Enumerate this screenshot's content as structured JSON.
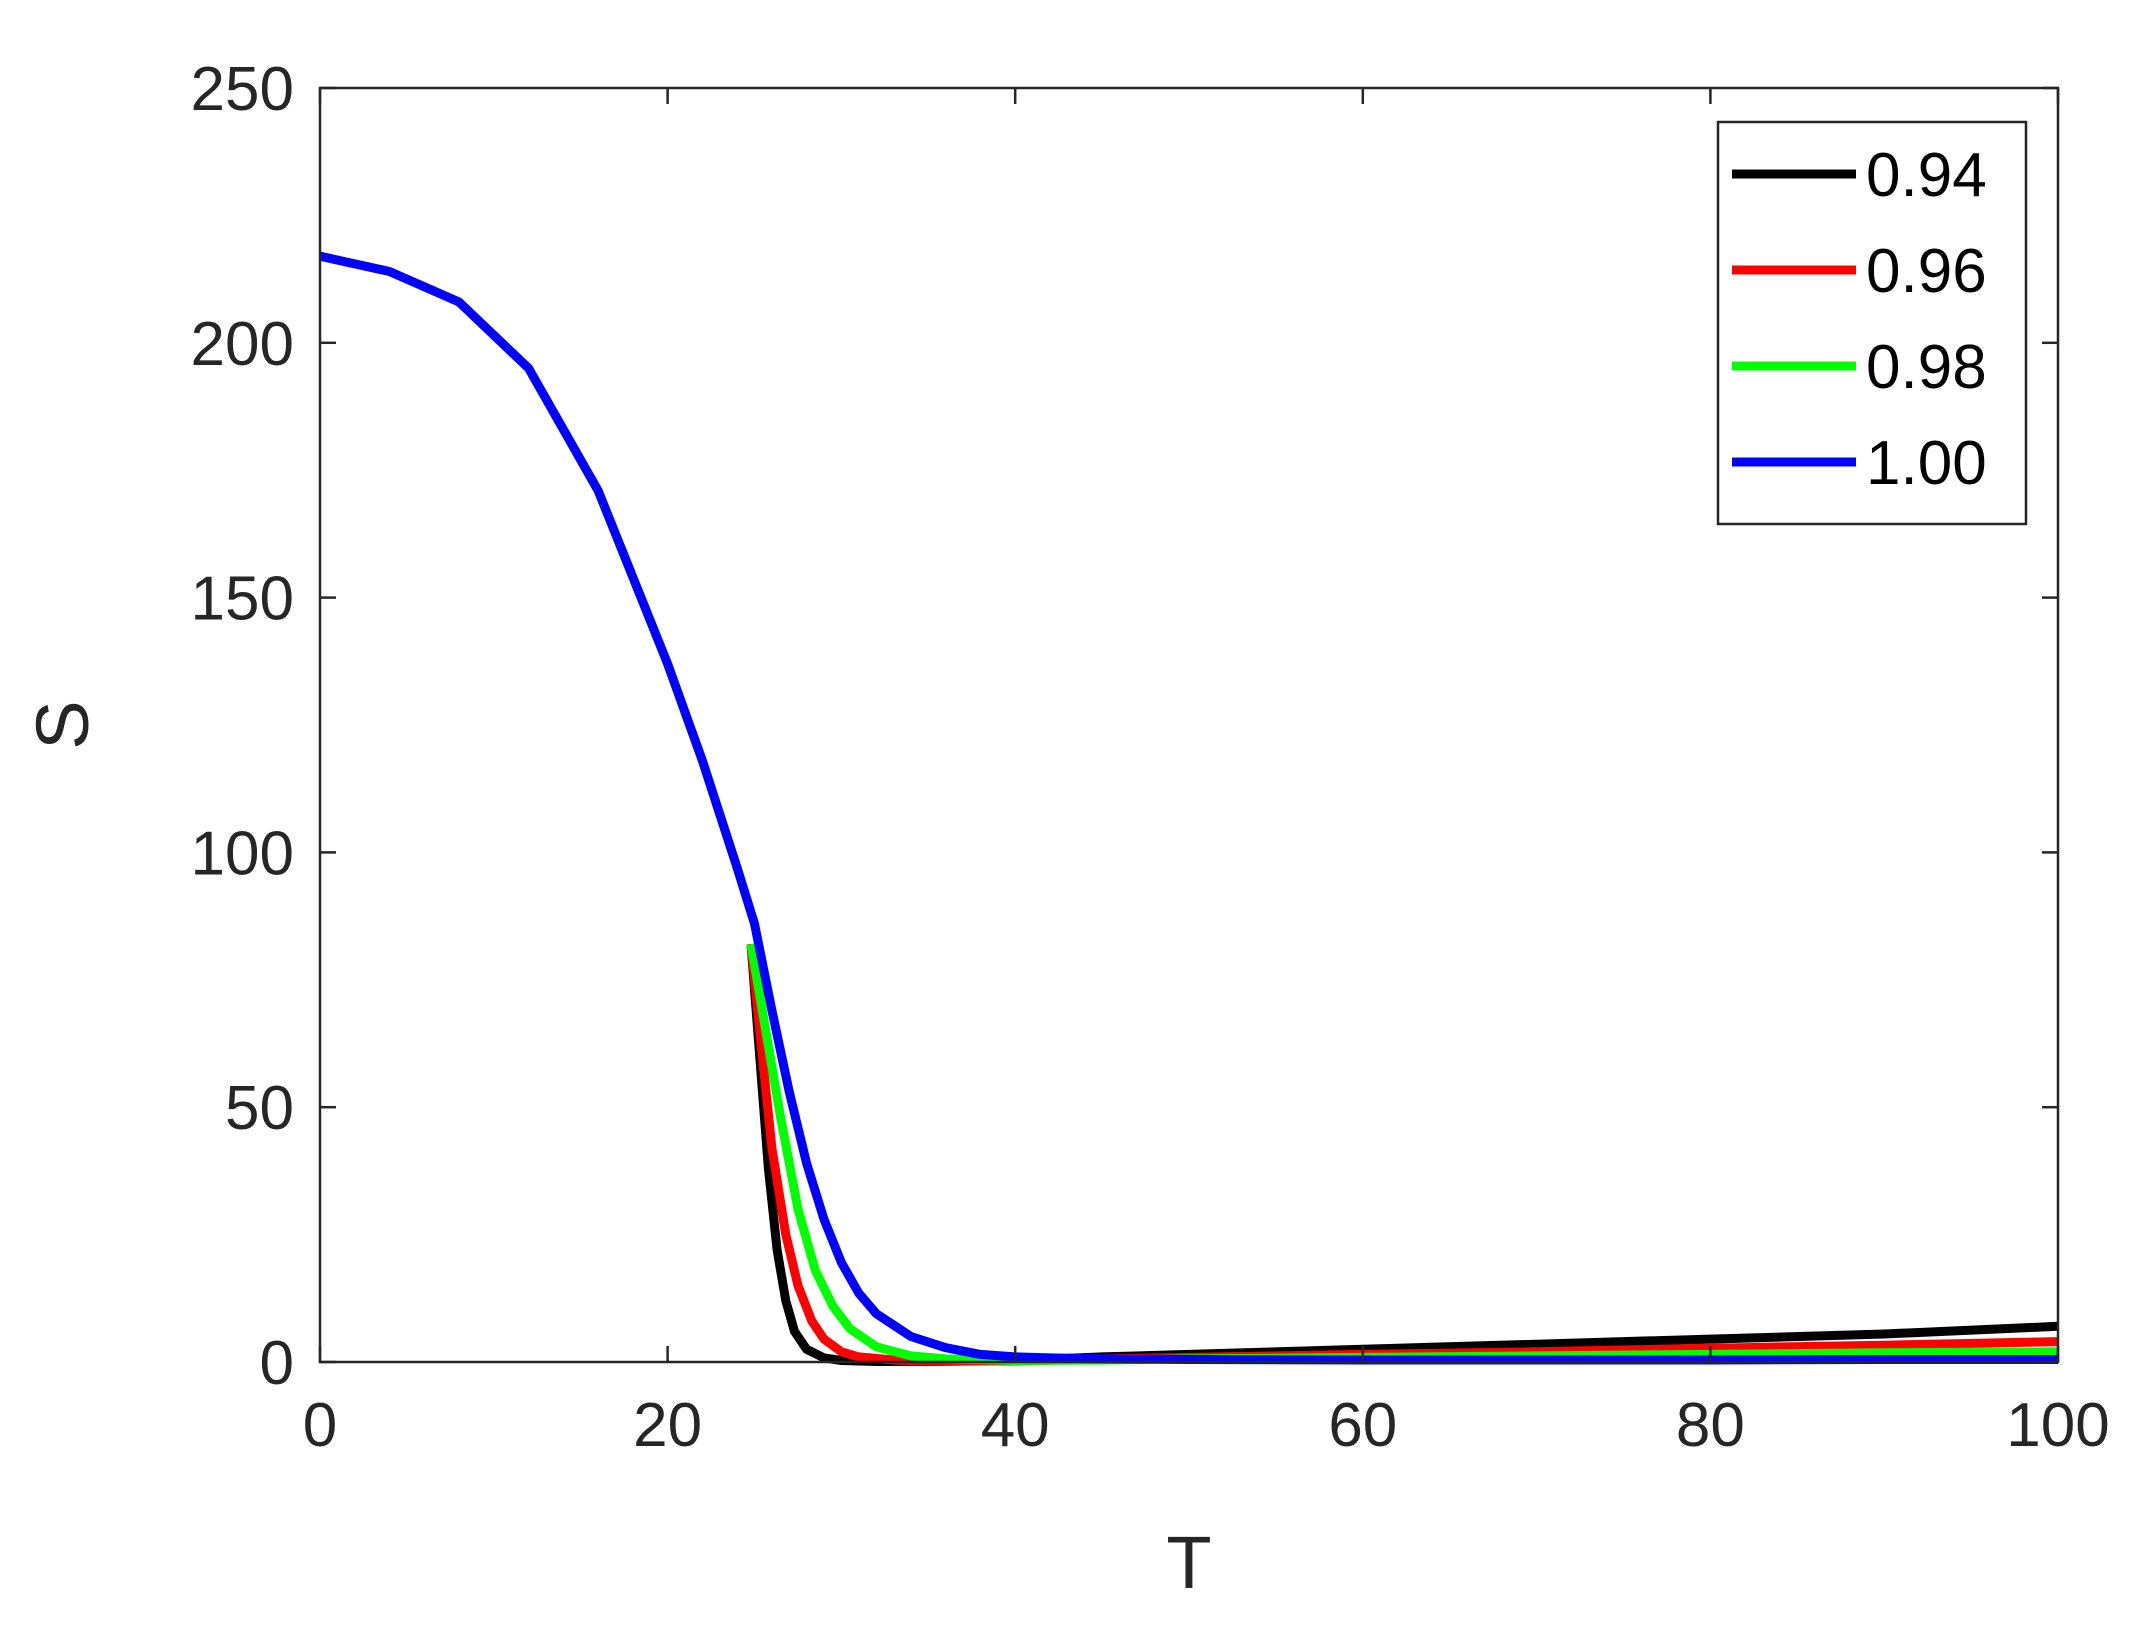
{
  "chart_data": {
    "type": "line",
    "title": "",
    "xlabel": "T",
    "ylabel": "S",
    "xlim": [
      0,
      100
    ],
    "ylim": [
      0,
      250
    ],
    "xticks": [
      0,
      20,
      40,
      60,
      80,
      100
    ],
    "yticks": [
      0,
      50,
      100,
      150,
      200,
      250
    ],
    "xtick_labels": [
      "0",
      "20",
      "40",
      "60",
      "80",
      "100"
    ],
    "ytick_labels": [
      "0",
      "50",
      "100",
      "150",
      "200",
      "250"
    ],
    "grid": false,
    "legend_position": "top-right",
    "series": [
      {
        "name": "0.94",
        "color": "#000000",
        "x": [
          24.8,
          25.3,
          25.8,
          26.3,
          26.8,
          27.3,
          28,
          29,
          30,
          32,
          35,
          40,
          45,
          50,
          60,
          70,
          80,
          90,
          100
        ],
        "y": [
          82,
          60,
          38,
          22,
          12,
          6,
          2.5,
          0.8,
          0.3,
          0.1,
          0.1,
          0.3,
          1,
          1.5,
          2.5,
          3.5,
          4.5,
          5.5,
          7
        ]
      },
      {
        "name": "0.96",
        "color": "#ff0000",
        "x": [
          24.8,
          25.3,
          26,
          26.8,
          27.5,
          28.3,
          29,
          30,
          31,
          33,
          35,
          40,
          45,
          50,
          60,
          70,
          80,
          90,
          100
        ],
        "y": [
          82,
          65,
          42,
          25,
          15,
          8,
          4.5,
          2,
          1,
          0.4,
          0.2,
          0.2,
          0.6,
          0.9,
          1.5,
          2,
          2.7,
          3.3,
          4
        ]
      },
      {
        "name": "0.98",
        "color": "#00ff00",
        "x": [
          24.8,
          25.5,
          26.5,
          27.5,
          28.5,
          29.5,
          30.5,
          32,
          34,
          36,
          40,
          45,
          50,
          60,
          70,
          80,
          90,
          100
        ],
        "y": [
          82,
          68,
          48,
          30,
          18,
          11,
          6.5,
          3,
          1.2,
          0.6,
          0.3,
          0.4,
          0.6,
          0.9,
          1.2,
          1.5,
          1.8,
          2
        ]
      },
      {
        "name": "1.00",
        "color": "#0000ff",
        "x": [
          0,
          4,
          8,
          12,
          16,
          20,
          22,
          24,
          25,
          26,
          27,
          28,
          29,
          30,
          31,
          32,
          34,
          36,
          38,
          40,
          42,
          45,
          50,
          60,
          70,
          80,
          90,
          100
        ],
        "y": [
          217,
          214,
          208,
          195,
          171,
          137,
          118,
          97,
          86,
          69,
          53,
          39,
          28,
          19.5,
          13.5,
          9.5,
          5,
          2.8,
          1.5,
          1,
          0.8,
          0.6,
          0.5,
          0.4,
          0.4,
          0.4,
          0.5,
          0.5
        ]
      }
    ]
  }
}
